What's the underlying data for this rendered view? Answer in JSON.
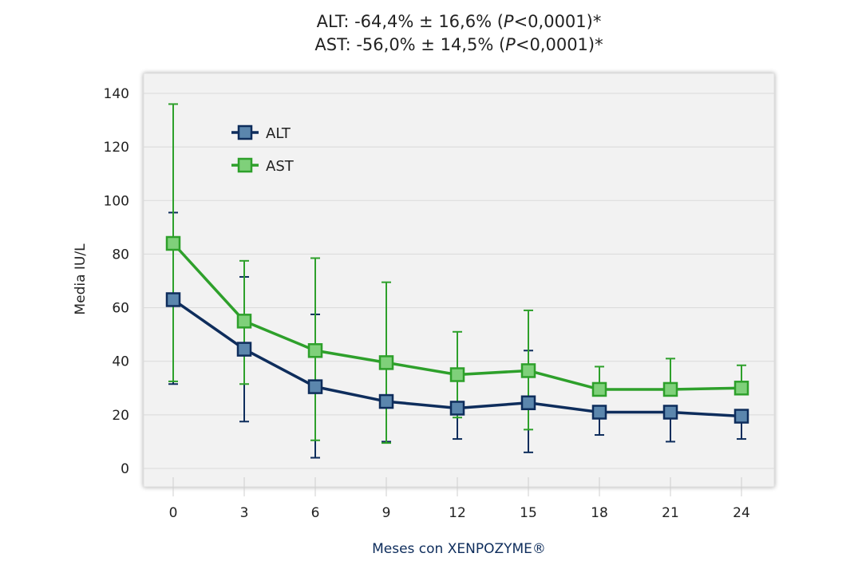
{
  "chart_data": {
    "type": "line",
    "title_lines": [
      {
        "a": "ALT: -64,4% ± 16,6% (",
        "p": "P",
        "b": "<0,0001)*"
      },
      {
        "a": "AST: -56,0% ± 14,5% (",
        "p": "P",
        "b": "<0,0001)*"
      }
    ],
    "xlabel": "Meses con XENPOZYME®",
    "ylabel": "Media IU/L",
    "x": [
      0,
      3,
      6,
      9,
      12,
      15,
      18,
      21,
      24
    ],
    "x_tick_labels": [
      "0",
      "3",
      "6",
      "9",
      "12",
      "15",
      "18",
      "21",
      "24"
    ],
    "ylim": [
      0,
      140
    ],
    "y_ticks": [
      0,
      20,
      40,
      60,
      80,
      100,
      120,
      140
    ],
    "grid": true,
    "legend_position": "top-left",
    "colors": {
      "alt_line": "#0e2d5c",
      "alt_marker": "#5b86ad",
      "ast_line": "#2ea02b",
      "ast_marker": "#7fd07a",
      "xlabel": "#0e2d5c",
      "plot_bg": "#f2f2f2",
      "grid": "#d9d9d9"
    },
    "series": [
      {
        "name": "ALT",
        "values": [
          63,
          44.5,
          30.5,
          25,
          22.5,
          24.5,
          21,
          21,
          19.5
        ],
        "err_low": [
          31.5,
          17.5,
          4,
          10,
          11,
          6,
          12.5,
          10,
          11
        ],
        "err_high": [
          95.5,
          71.5,
          57.5,
          25,
          22.5,
          44,
          21,
          21,
          19.5
        ]
      },
      {
        "name": "AST",
        "values": [
          84,
          55,
          44,
          39.5,
          35,
          36.5,
          29.5,
          29.5,
          30
        ],
        "err_low": [
          32.5,
          31.5,
          10.5,
          9.5,
          19,
          14.5,
          29.5,
          29.5,
          30
        ],
        "err_high": [
          136,
          77.5,
          78.5,
          69.5,
          51,
          59,
          38,
          41,
          38.5
        ]
      }
    ]
  }
}
